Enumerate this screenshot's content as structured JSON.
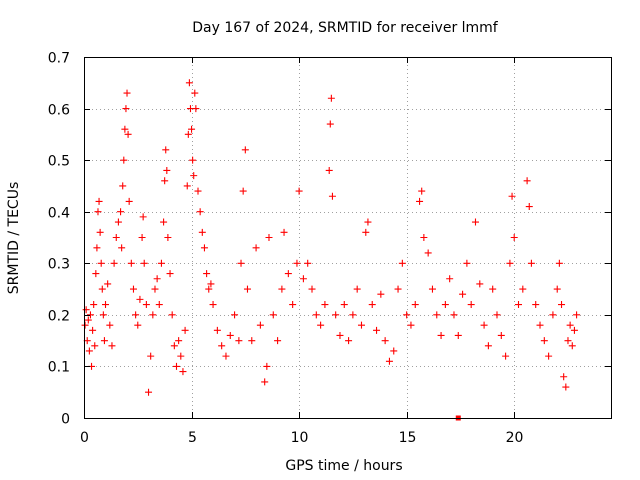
{
  "chart_data": {
    "type": "scatter",
    "title": "Day 167 of 2024, SRMTID for receiver lmmf",
    "xlabel": "GPS time / hours",
    "ylabel": "SRMTID / TECUs",
    "xlim": [
      0,
      24.5
    ],
    "ylim": [
      0,
      0.7
    ],
    "xticks": [
      0,
      5,
      10,
      15,
      20
    ],
    "xtick_labels": [
      "0",
      "5",
      "10",
      "15",
      "20"
    ],
    "yticks": [
      0,
      0.1,
      0.2,
      0.3,
      0.4,
      0.5,
      0.6,
      0.7
    ],
    "ytick_labels": [
      "0",
      "0.1",
      "0.2",
      "0.3",
      "0.4",
      "0.5",
      "0.6",
      "0.7"
    ],
    "grid": true,
    "marker": "+",
    "color": "#ff0000",
    "series": [
      {
        "name": "SRMTID",
        "points": [
          [
            0.05,
            0.18
          ],
          [
            0.1,
            0.21
          ],
          [
            0.15,
            0.15
          ],
          [
            0.2,
            0.19
          ],
          [
            0.25,
            0.13
          ],
          [
            0.3,
            0.2
          ],
          [
            0.35,
            0.1
          ],
          [
            0.4,
            0.17
          ],
          [
            0.45,
            0.22
          ],
          [
            0.5,
            0.14
          ],
          [
            0.55,
            0.28
          ],
          [
            0.6,
            0.33
          ],
          [
            0.65,
            0.4
          ],
          [
            0.7,
            0.42
          ],
          [
            0.75,
            0.36
          ],
          [
            0.8,
            0.3
          ],
          [
            0.85,
            0.25
          ],
          [
            0.9,
            0.2
          ],
          [
            0.95,
            0.15
          ],
          [
            1.0,
            0.22
          ],
          [
            1.1,
            0.26
          ],
          [
            1.2,
            0.18
          ],
          [
            1.3,
            0.14
          ],
          [
            1.4,
            0.3
          ],
          [
            1.5,
            0.35
          ],
          [
            1.6,
            0.38
          ],
          [
            1.7,
            0.4
          ],
          [
            1.75,
            0.33
          ],
          [
            1.8,
            0.45
          ],
          [
            1.85,
            0.5
          ],
          [
            1.9,
            0.56
          ],
          [
            1.95,
            0.6
          ],
          [
            2.0,
            0.63
          ],
          [
            2.05,
            0.55
          ],
          [
            2.1,
            0.42
          ],
          [
            2.2,
            0.3
          ],
          [
            2.3,
            0.25
          ],
          [
            2.4,
            0.2
          ],
          [
            2.5,
            0.18
          ],
          [
            2.6,
            0.23
          ],
          [
            2.7,
            0.35
          ],
          [
            2.75,
            0.39
          ],
          [
            2.8,
            0.3
          ],
          [
            2.9,
            0.22
          ],
          [
            3.0,
            0.05
          ],
          [
            3.1,
            0.12
          ],
          [
            3.2,
            0.2
          ],
          [
            3.3,
            0.25
          ],
          [
            3.4,
            0.27
          ],
          [
            3.5,
            0.22
          ],
          [
            3.6,
            0.3
          ],
          [
            3.7,
            0.38
          ],
          [
            3.75,
            0.46
          ],
          [
            3.8,
            0.52
          ],
          [
            3.85,
            0.48
          ],
          [
            3.9,
            0.35
          ],
          [
            4.0,
            0.28
          ],
          [
            4.1,
            0.2
          ],
          [
            4.2,
            0.14
          ],
          [
            4.3,
            0.1
          ],
          [
            4.4,
            0.15
          ],
          [
            4.5,
            0.12
          ],
          [
            4.6,
            0.09
          ],
          [
            4.7,
            0.17
          ],
          [
            4.8,
            0.45
          ],
          [
            4.85,
            0.55
          ],
          [
            4.9,
            0.65
          ],
          [
            4.95,
            0.6
          ],
          [
            5.0,
            0.56
          ],
          [
            5.05,
            0.5
          ],
          [
            5.1,
            0.47
          ],
          [
            5.15,
            0.63
          ],
          [
            5.2,
            0.6
          ],
          [
            5.3,
            0.44
          ],
          [
            5.4,
            0.4
          ],
          [
            5.5,
            0.36
          ],
          [
            5.6,
            0.33
          ],
          [
            5.7,
            0.28
          ],
          [
            5.8,
            0.25
          ],
          [
            5.9,
            0.26
          ],
          [
            6.0,
            0.22
          ],
          [
            6.2,
            0.17
          ],
          [
            6.4,
            0.14
          ],
          [
            6.6,
            0.12
          ],
          [
            6.8,
            0.16
          ],
          [
            7.0,
            0.2
          ],
          [
            7.2,
            0.15
          ],
          [
            7.3,
            0.3
          ],
          [
            7.4,
            0.44
          ],
          [
            7.5,
            0.52
          ],
          [
            7.6,
            0.25
          ],
          [
            7.8,
            0.15
          ],
          [
            8.0,
            0.33
          ],
          [
            8.2,
            0.18
          ],
          [
            8.4,
            0.07
          ],
          [
            8.5,
            0.1
          ],
          [
            8.6,
            0.35
          ],
          [
            8.8,
            0.2
          ],
          [
            9.0,
            0.15
          ],
          [
            9.2,
            0.25
          ],
          [
            9.3,
            0.36
          ],
          [
            9.5,
            0.28
          ],
          [
            9.7,
            0.22
          ],
          [
            9.9,
            0.3
          ],
          [
            10.0,
            0.44
          ],
          [
            10.2,
            0.27
          ],
          [
            10.4,
            0.3
          ],
          [
            10.6,
            0.25
          ],
          [
            10.8,
            0.2
          ],
          [
            11.0,
            0.18
          ],
          [
            11.2,
            0.22
          ],
          [
            11.4,
            0.48
          ],
          [
            11.45,
            0.57
          ],
          [
            11.5,
            0.62
          ],
          [
            11.55,
            0.43
          ],
          [
            11.7,
            0.2
          ],
          [
            11.9,
            0.16
          ],
          [
            12.1,
            0.22
          ],
          [
            12.3,
            0.15
          ],
          [
            12.5,
            0.2
          ],
          [
            12.7,
            0.25
          ],
          [
            12.9,
            0.18
          ],
          [
            13.1,
            0.36
          ],
          [
            13.2,
            0.38
          ],
          [
            13.4,
            0.22
          ],
          [
            13.6,
            0.17
          ],
          [
            13.8,
            0.24
          ],
          [
            14.0,
            0.15
          ],
          [
            14.2,
            0.11
          ],
          [
            14.4,
            0.13
          ],
          [
            14.6,
            0.25
          ],
          [
            14.8,
            0.3
          ],
          [
            15.0,
            0.2
          ],
          [
            15.2,
            0.18
          ],
          [
            15.4,
            0.22
          ],
          [
            15.6,
            0.42
          ],
          [
            15.7,
            0.44
          ],
          [
            15.8,
            0.35
          ],
          [
            16.0,
            0.32
          ],
          [
            16.2,
            0.25
          ],
          [
            16.4,
            0.2
          ],
          [
            16.6,
            0.16
          ],
          [
            16.8,
            0.22
          ],
          [
            17.0,
            0.27
          ],
          [
            17.2,
            0.2
          ],
          [
            17.4,
            0.16
          ],
          [
            17.6,
            0.24
          ],
          [
            17.8,
            0.3
          ],
          [
            18.0,
            0.22
          ],
          [
            18.2,
            0.38
          ],
          [
            18.4,
            0.26
          ],
          [
            18.6,
            0.18
          ],
          [
            18.8,
            0.14
          ],
          [
            19.0,
            0.25
          ],
          [
            19.2,
            0.2
          ],
          [
            19.4,
            0.16
          ],
          [
            19.6,
            0.12
          ],
          [
            19.8,
            0.3
          ],
          [
            19.9,
            0.43
          ],
          [
            20.0,
            0.35
          ],
          [
            20.2,
            0.22
          ],
          [
            20.4,
            0.25
          ],
          [
            20.6,
            0.46
          ],
          [
            20.7,
            0.41
          ],
          [
            20.8,
            0.3
          ],
          [
            21.0,
            0.22
          ],
          [
            21.2,
            0.18
          ],
          [
            21.4,
            0.15
          ],
          [
            21.6,
            0.12
          ],
          [
            21.8,
            0.2
          ],
          [
            22.0,
            0.25
          ],
          [
            22.1,
            0.3
          ],
          [
            22.2,
            0.22
          ],
          [
            22.3,
            0.08
          ],
          [
            22.4,
            0.06
          ],
          [
            22.5,
            0.15
          ],
          [
            22.6,
            0.18
          ],
          [
            22.7,
            0.14
          ],
          [
            22.8,
            0.17
          ],
          [
            22.9,
            0.2
          ]
        ]
      },
      {
        "name": "baseline marker",
        "points": [
          [
            17.4,
            0.0
          ]
        ],
        "marker": "square"
      }
    ]
  }
}
